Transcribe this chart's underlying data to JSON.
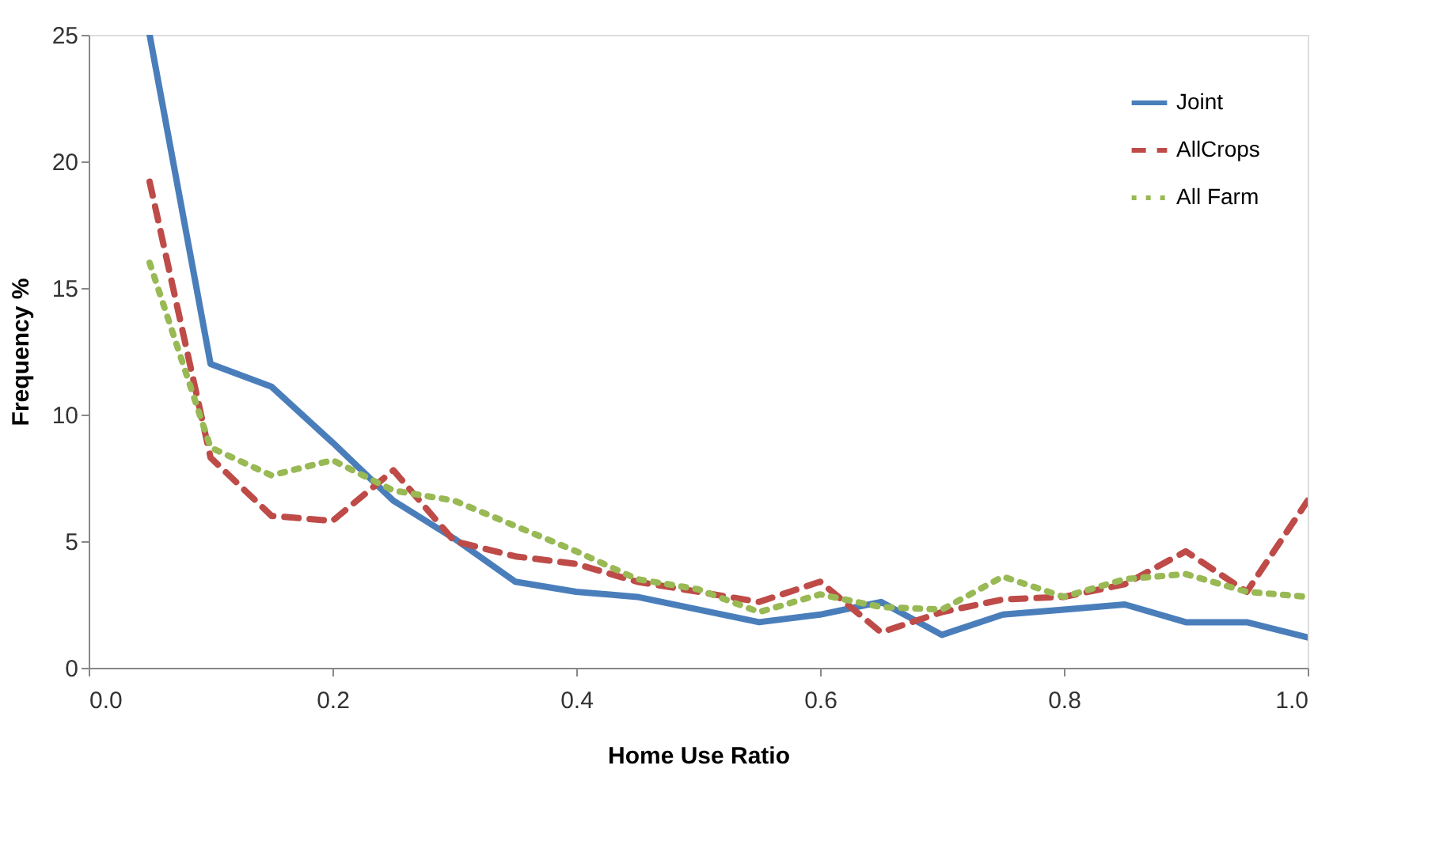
{
  "chart_data": {
    "type": "line",
    "xlabel": "Home Use Ratio",
    "ylabel": "Frequency %",
    "x": [
      0.05,
      0.1,
      0.15,
      0.2,
      0.25,
      0.3,
      0.35,
      0.4,
      0.45,
      0.5,
      0.55,
      0.6,
      0.65,
      0.7,
      0.75,
      0.8,
      0.85,
      0.9,
      0.95,
      1.0
    ],
    "series": [
      {
        "name": "Joint",
        "color": "#4a7ebb",
        "line_style": "solid",
        "values": [
          25,
          12,
          11.1,
          8.9,
          6.6,
          5.1,
          3.4,
          3.0,
          2.8,
          2.3,
          1.8,
          2.1,
          2.6,
          1.3,
          2.1,
          2.3,
          2.5,
          1.8,
          1.8,
          1.2
        ]
      },
      {
        "name": "AllCrops",
        "color": "#be4b48",
        "line_style": "dashed",
        "values": [
          19.2,
          8.3,
          6.0,
          5.8,
          7.8,
          5.0,
          4.4,
          4.1,
          3.4,
          3.0,
          2.6,
          3.4,
          1.4,
          2.2,
          2.7,
          2.8,
          3.3,
          4.6,
          3.0,
          6.6
        ]
      },
      {
        "name": "All Farm",
        "color": "#98b954",
        "line_style": "dotted",
        "values": [
          16,
          8.7,
          7.6,
          8.2,
          7.0,
          6.6,
          5.6,
          4.6,
          3.5,
          3.1,
          2.2,
          2.9,
          2.4,
          2.3,
          3.6,
          2.8,
          3.5,
          3.7,
          3.0,
          2.8
        ]
      }
    ],
    "xlim": [
      0,
      1.0
    ],
    "xticks": [
      {
        "value": 0,
        "label": "0.0"
      },
      {
        "value": 0.2,
        "label": "0.2"
      },
      {
        "value": 0.4,
        "label": "0.4"
      },
      {
        "value": 0.6,
        "label": "0.6"
      },
      {
        "value": 0.8,
        "label": "0.8"
      },
      {
        "value": 1.0,
        "label": "1.0"
      }
    ],
    "ylim": [
      0,
      25
    ],
    "yticks": [
      0,
      5,
      10,
      15,
      20,
      25
    ],
    "grid": false,
    "legend": "top right",
    "marker": "none"
  }
}
